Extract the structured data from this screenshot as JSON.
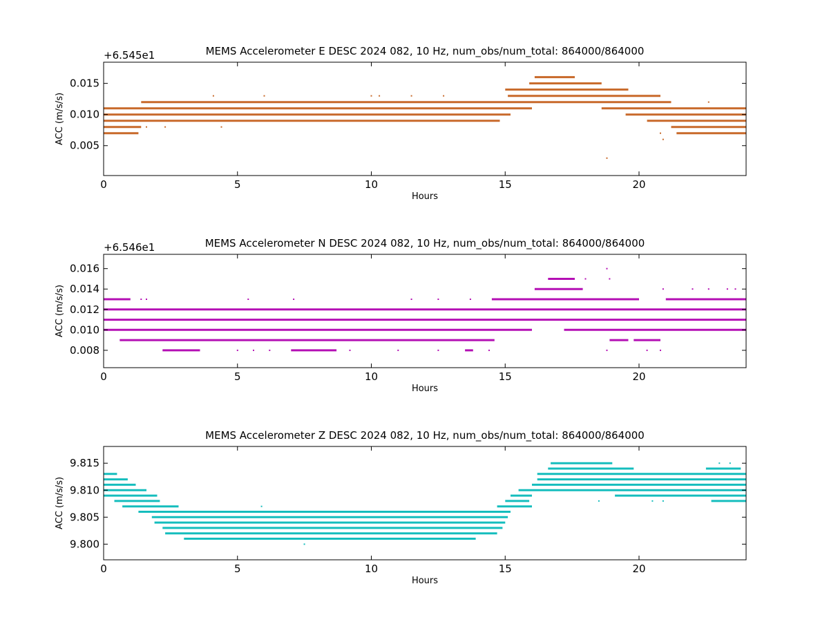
{
  "colors": {
    "background": "#ffffff",
    "E": "#c8692a",
    "N": "#b40fb4",
    "Z": "#15bdbd",
    "axes": "#000000"
  },
  "chart_data": [
    {
      "type": "scatter",
      "component": "E",
      "title": "MEMS Accelerometer E DESC 2024 082, 10 Hz, num_obs/num_total: 864000/864000",
      "offset_text": "+6.545e1",
      "xlabel": "Hours",
      "ylabel": "ACC (m/s/s)",
      "xlim": [
        0,
        24
      ],
      "ylim": [
        0.0002,
        0.0184
      ],
      "xticks": [
        0,
        5,
        10,
        15,
        20
      ],
      "yticks": [
        0.005,
        0.01,
        0.015
      ],
      "ytick_labels": [
        "0.005",
        "0.010",
        "0.015"
      ],
      "color": "#c8692a",
      "bands": [
        {
          "y": 0.007,
          "segments": [
            [
              0,
              1.3
            ],
            [
              21.4,
              24
            ]
          ]
        },
        {
          "y": 0.008,
          "segments": [
            [
              0,
              1.4
            ],
            [
              21.2,
              24
            ]
          ]
        },
        {
          "y": 0.009,
          "segments": [
            [
              0,
              14.8
            ],
            [
              20.3,
              24
            ]
          ]
        },
        {
          "y": 0.01,
          "segments": [
            [
              0,
              15.2
            ],
            [
              19.5,
              24
            ]
          ]
        },
        {
          "y": 0.011,
          "segments": [
            [
              0,
              16.0
            ],
            [
              18.6,
              24
            ]
          ]
        },
        {
          "y": 0.012,
          "segments": [
            [
              1.4,
              21.2
            ]
          ]
        },
        {
          "y": 0.013,
          "segments": [
            [
              15.1,
              20.8
            ]
          ]
        },
        {
          "y": 0.014,
          "segments": [
            [
              15.0,
              19.6
            ]
          ]
        },
        {
          "y": 0.015,
          "segments": [
            [
              15.9,
              18.6
            ]
          ]
        },
        {
          "y": 0.016,
          "segments": [
            [
              16.1,
              17.6
            ]
          ]
        }
      ],
      "outliers": [
        [
          1.6,
          0.008
        ],
        [
          2.3,
          0.008
        ],
        [
          4.1,
          0.013
        ],
        [
          4.4,
          0.008
        ],
        [
          6.0,
          0.013
        ],
        [
          10.0,
          0.013
        ],
        [
          10.3,
          0.013
        ],
        [
          11.5,
          0.013
        ],
        [
          12.7,
          0.013
        ],
        [
          16.5,
          0.016
        ],
        [
          17.3,
          0.016
        ],
        [
          18.8,
          0.003
        ],
        [
          20.9,
          0.006
        ],
        [
          20.8,
          0.007
        ],
        [
          22.6,
          0.012
        ]
      ]
    },
    {
      "type": "scatter",
      "component": "N",
      "title": "MEMS Accelerometer N DESC 2024 082, 10 Hz, num_obs/num_total: 864000/864000",
      "offset_text": "+6.546e1",
      "xlabel": "Hours",
      "ylabel": "ACC (m/s/s)",
      "xlim": [
        0,
        24
      ],
      "ylim": [
        0.0063,
        0.0174
      ],
      "xticks": [
        0,
        5,
        10,
        15,
        20
      ],
      "yticks": [
        0.008,
        0.01,
        0.012,
        0.014,
        0.016
      ],
      "ytick_labels": [
        "0.008",
        "0.010",
        "0.012",
        "0.014",
        "0.016"
      ],
      "color": "#b40fb4",
      "bands": [
        {
          "y": 0.008,
          "segments": [
            [
              2.2,
              3.6
            ],
            [
              7.0,
              8.7
            ],
            [
              13.5,
              13.8
            ]
          ]
        },
        {
          "y": 0.009,
          "segments": [
            [
              0.6,
              14.6
            ],
            [
              18.9,
              19.6
            ],
            [
              19.8,
              20.8
            ]
          ]
        },
        {
          "y": 0.01,
          "segments": [
            [
              0,
              16.0
            ],
            [
              17.2,
              24
            ]
          ]
        },
        {
          "y": 0.011,
          "segments": [
            [
              0,
              24
            ]
          ]
        },
        {
          "y": 0.012,
          "segments": [
            [
              0,
              24
            ]
          ]
        },
        {
          "y": 0.013,
          "segments": [
            [
              0,
              1.0
            ],
            [
              14.5,
              20.0
            ],
            [
              21.0,
              24
            ]
          ]
        },
        {
          "y": 0.014,
          "segments": [
            [
              16.1,
              17.9
            ]
          ]
        },
        {
          "y": 0.015,
          "segments": [
            [
              16.6,
              17.6
            ]
          ]
        }
      ],
      "outliers": [
        [
          1.4,
          0.013
        ],
        [
          1.6,
          0.013
        ],
        [
          5.4,
          0.013
        ],
        [
          7.1,
          0.013
        ],
        [
          11.5,
          0.013
        ],
        [
          12.5,
          0.013
        ],
        [
          13.7,
          0.013
        ],
        [
          5.0,
          0.008
        ],
        [
          5.6,
          0.008
        ],
        [
          6.2,
          0.008
        ],
        [
          9.2,
          0.008
        ],
        [
          11.0,
          0.008
        ],
        [
          12.5,
          0.008
        ],
        [
          14.4,
          0.008
        ],
        [
          18.8,
          0.016
        ],
        [
          18.9,
          0.015
        ],
        [
          18.0,
          0.015
        ],
        [
          20.9,
          0.014
        ],
        [
          22.0,
          0.014
        ],
        [
          22.6,
          0.014
        ],
        [
          23.3,
          0.014
        ],
        [
          23.6,
          0.014
        ],
        [
          18.8,
          0.008
        ],
        [
          20.3,
          0.008
        ],
        [
          20.8,
          0.008
        ]
      ]
    },
    {
      "type": "scatter",
      "component": "Z",
      "title": "MEMS Accelerometer Z DESC 2024 082, 10 Hz, num_obs/num_total: 864000/864000",
      "offset_text": "",
      "xlabel": "Hours",
      "ylabel": "ACC (m/s/s)",
      "xlim": [
        0,
        24
      ],
      "ylim": [
        9.7971,
        9.8181
      ],
      "xticks": [
        0,
        5,
        10,
        15,
        20
      ],
      "yticks": [
        9.8,
        9.805,
        9.81,
        9.815
      ],
      "ytick_labels": [
        "9.800",
        "9.805",
        "9.810",
        "9.815"
      ],
      "color": "#15bdbd",
      "bands": [
        {
          "y": 9.801,
          "segments": [
            [
              3.0,
              13.9
            ]
          ]
        },
        {
          "y": 9.802,
          "segments": [
            [
              2.3,
              14.7
            ]
          ]
        },
        {
          "y": 9.803,
          "segments": [
            [
              2.2,
              14.9
            ]
          ]
        },
        {
          "y": 9.804,
          "segments": [
            [
              1.9,
              15.0
            ]
          ]
        },
        {
          "y": 9.805,
          "segments": [
            [
              1.8,
              15.1
            ]
          ]
        },
        {
          "y": 9.806,
          "segments": [
            [
              1.3,
              15.2
            ]
          ]
        },
        {
          "y": 9.807,
          "segments": [
            [
              0.7,
              2.8
            ],
            [
              14.7,
              16.0
            ]
          ]
        },
        {
          "y": 9.808,
          "segments": [
            [
              0.4,
              2.1
            ],
            [
              15.0,
              15.9
            ],
            [
              22.7,
              24
            ]
          ]
        },
        {
          "y": 9.809,
          "segments": [
            [
              0,
              2.0
            ],
            [
              15.2,
              16.0
            ],
            [
              19.1,
              24
            ]
          ]
        },
        {
          "y": 9.81,
          "segments": [
            [
              0,
              1.6
            ],
            [
              15.5,
              24
            ]
          ]
        },
        {
          "y": 9.811,
          "segments": [
            [
              0,
              1.2
            ],
            [
              16.0,
              24
            ]
          ]
        },
        {
          "y": 9.812,
          "segments": [
            [
              0,
              0.9
            ],
            [
              16.2,
              24
            ]
          ]
        },
        {
          "y": 9.813,
          "segments": [
            [
              0,
              0.5
            ],
            [
              16.2,
              24
            ]
          ]
        },
        {
          "y": 9.814,
          "segments": [
            [
              16.6,
              19.8
            ],
            [
              22.5,
              23.8
            ]
          ]
        },
        {
          "y": 9.815,
          "segments": [
            [
              16.7,
              19.0
            ]
          ]
        }
      ],
      "outliers": [
        [
          5.9,
          9.807
        ],
        [
          7.5,
          9.8
        ],
        [
          18.5,
          9.808
        ],
        [
          20.5,
          9.808
        ],
        [
          20.9,
          9.808
        ],
        [
          23.0,
          9.815
        ],
        [
          23.4,
          9.815
        ],
        [
          21.6,
          9.813
        ],
        [
          22.0,
          9.813
        ]
      ]
    }
  ]
}
